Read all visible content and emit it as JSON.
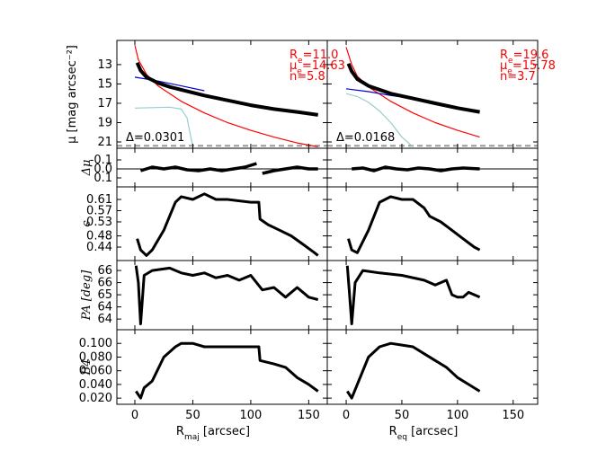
{
  "chart_data": {
    "type": "line",
    "columns": [
      {
        "xlim": [
          -15.5,
          166
        ],
        "xticks": [
          0,
          50,
          100,
          150
        ],
        "xlabel": [
          {
            "t": "R"
          },
          {
            "sub": "maj"
          },
          {
            "t": " [arcsec]"
          }
        ]
      },
      {
        "xlim": [
          -17,
          172
        ],
        "xticks": [
          0,
          50,
          100,
          150
        ],
        "xlabel": [
          {
            "t": "R"
          },
          {
            "sub": "eq"
          },
          {
            "t": " [arcsec]"
          }
        ]
      }
    ],
    "rows": [
      {
        "ylabel": "μ [mag arcsec⁻²]",
        "ylim": [
          10.5,
          21.65
        ],
        "inverted": true,
        "yticks": [
          13,
          15,
          17,
          19,
          21
        ],
        "hline": {
          "value": 21.4,
          "color": "#999999",
          "dashed": true
        },
        "panels": [
          {
            "series": [
              {
                "color": "#ff0000",
                "width": 1.2,
                "x": [
                  0,
                  3,
                  10,
                  20,
                  40,
                  60,
                  80,
                  100,
                  120,
                  140,
                  158
                ],
                "values": [
                  11,
                  12.5,
                  14,
                  15.2,
                  16.8,
                  18,
                  19,
                  19.8,
                  20.5,
                  21.1,
                  21.5
                ]
              },
              {
                "color": "#0000cc",
                "width": 1.2,
                "x": [
                  0,
                  20,
                  40,
                  60
                ],
                "values": [
                  14.3,
                  14.7,
                  15.2,
                  15.7
                ]
              },
              {
                "color": "#99cccc",
                "width": 1.2,
                "x": [
                  0,
                  30,
                  40,
                  45,
                  50
                ],
                "values": [
                  17.5,
                  17.4,
                  17.6,
                  18.5,
                  21.5
                ]
              },
              {
                "color": "#000000",
                "width": 4,
                "x": [
                  2,
                  5,
                  10,
                  20,
                  30,
                  40,
                  60,
                  80,
                  100,
                  120,
                  140,
                  158
                ],
                "values": [
                  12.8,
                  13.6,
                  14.3,
                  14.9,
                  15.3,
                  15.6,
                  16.2,
                  16.7,
                  17.2,
                  17.6,
                  17.9,
                  18.2
                ]
              }
            ],
            "annotations": [
              {
                "color": "#ff0000",
                "parts": [
                  {
                    "t": "R"
                  },
                  {
                    "sub": "e"
                  },
                  {
                    "t": "=11.0"
                  }
                ]
              },
              {
                "color": "#ff0000",
                "parts": [
                  {
                    "t": "μ"
                  },
                  {
                    "sub": "e"
                  },
                  {
                    "t": "=14.63"
                  }
                ]
              },
              {
                "color": "#ff0000",
                "parts": [
                  {
                    "t": "n=5.8"
                  }
                ]
              }
            ],
            "delta": "Δ=0.0301"
          },
          {
            "series": [
              {
                "color": "#ff0000",
                "width": 1.2,
                "x": [
                  0,
                  5,
                  10,
                  20,
                  40,
                  60,
                  80,
                  100,
                  120
                ],
                "values": [
                  11.2,
                  13,
                  14.2,
                  15.3,
                  16.8,
                  18,
                  19,
                  19.8,
                  20.5
                ]
              },
              {
                "color": "#0000cc",
                "width": 1.2,
                "x": [
                  0,
                  20,
                  40,
                  60
                ],
                "values": [
                  15.5,
                  15.8,
                  16.2,
                  16.5
                ]
              },
              {
                "color": "#99cccc",
                "width": 1.2,
                "x": [
                  0,
                  10,
                  20,
                  30,
                  40,
                  50,
                  60
                ],
                "values": [
                  16,
                  16.3,
                  16.9,
                  17.8,
                  19,
                  20.5,
                  21.5
                ]
              },
              {
                "color": "#000000",
                "width": 4,
                "x": [
                  2,
                  5,
                  10,
                  20,
                  40,
                  60,
                  80,
                  100,
                  120
                ],
                "values": [
                  12.9,
                  13.7,
                  14.5,
                  15.2,
                  16,
                  16.5,
                  17,
                  17.5,
                  17.9
                ]
              }
            ],
            "annotations": [
              {
                "color": "#ff0000",
                "parts": [
                  {
                    "t": "R"
                  },
                  {
                    "sub": "e"
                  },
                  {
                    "t": "=19.6"
                  }
                ]
              },
              {
                "color": "#ff0000",
                "parts": [
                  {
                    "t": "μ"
                  },
                  {
                    "sub": "e"
                  },
                  {
                    "t": "=15.78"
                  }
                ]
              },
              {
                "color": "#ff0000",
                "parts": [
                  {
                    "t": "n=3.7"
                  }
                ]
              }
            ],
            "delta": "Δ=0.0168"
          }
        ]
      },
      {
        "ylabel": "Δμ",
        "ylim": [
          -0.23,
          0.2
        ],
        "inverted": true,
        "yticks": [
          -0.1,
          {
            "value": 0,
            "label": "0.0"
          },
          0.1
        ],
        "hline": {
          "value": 0,
          "color": "#000000",
          "dashed": false
        },
        "panels": [
          {
            "series": [
              {
                "color": "#000000",
                "width": 3.5,
                "x": [
                  5,
                  15,
                  25,
                  35,
                  45,
                  55,
                  65,
                  75,
                  85,
                  95,
                  105,
                  108,
                  110,
                  120,
                  130,
                  140,
                  150,
                  158
                ],
                "values": [
                  0.02,
                  -0.02,
                  0,
                  -0.02,
                  0.01,
                  0.02,
                  0,
                  0.02,
                  0,
                  -0.02,
                  -0.06,
                  null,
                  0.05,
                  0.02,
                  0,
                  -0.02,
                  0,
                  0
                ]
              }
            ]
          },
          {
            "series": [
              {
                "color": "#000000",
                "width": 3.5,
                "x": [
                  5,
                  15,
                  25,
                  35,
                  45,
                  55,
                  65,
                  75,
                  85,
                  95,
                  105,
                  120
                ],
                "values": [
                  0,
                  -0.01,
                  0.02,
                  -0.02,
                  0,
                  0.01,
                  -0.01,
                  0,
                  0.02,
                  0,
                  -0.01,
                  0
                ]
              }
            ]
          }
        ]
      },
      {
        "ylabel": "ϵ",
        "ylim": [
          0.392,
          0.655
        ],
        "yticks": [
          0.44,
          0.48,
          0.53,
          0.57,
          0.61
        ],
        "panels": [
          {
            "series": [
              {
                "color": "#000000",
                "width": 3,
                "x": [
                  2,
                  5,
                  10,
                  15,
                  25,
                  35,
                  40,
                  50,
                  60,
                  70,
                  80,
                  100,
                  107,
                  108,
                  115,
                  125,
                  135,
                  145,
                  155,
                  158
                ],
                "values": [
                  0.47,
                  0.43,
                  0.41,
                  0.43,
                  0.5,
                  0.6,
                  0.62,
                  0.61,
                  0.63,
                  0.61,
                  0.61,
                  0.6,
                  0.6,
                  0.54,
                  0.52,
                  0.5,
                  0.48,
                  0.45,
                  0.42,
                  0.41
                ]
              }
            ]
          },
          {
            "series": [
              {
                "color": "#000000",
                "width": 3,
                "x": [
                  2,
                  5,
                  10,
                  20,
                  30,
                  40,
                  50,
                  60,
                  70,
                  75,
                  85,
                  95,
                  105,
                  115,
                  120
                ],
                "values": [
                  0.47,
                  0.43,
                  0.42,
                  0.5,
                  0.6,
                  0.62,
                  0.61,
                  0.61,
                  0.58,
                  0.55,
                  0.53,
                  0.5,
                  0.47,
                  0.44,
                  0.43
                ]
              }
            ]
          }
        ]
      },
      {
        "ylabel": "PA [deg]",
        "ylim": [
          63.56,
          66.41
        ],
        "yticks": [
          {
            "value": 64,
            "label": "64"
          },
          {
            "value": 64.5,
            "label": "64"
          },
          {
            "value": 65,
            "label": "65"
          },
          {
            "value": 65.5,
            "label": "66"
          },
          {
            "value": 66,
            "label": "66"
          }
        ],
        "panels": [
          {
            "series": [
              {
                "color": "#000000",
                "width": 3,
                "x": [
                  1,
                  3,
                  5,
                  8,
                  15,
                  30,
                  40,
                  50,
                  60,
                  70,
                  80,
                  90,
                  100,
                  110,
                  120,
                  130,
                  140,
                  150,
                  158
                ],
                "values": [
                  66.2,
                  65.5,
                  63.8,
                  65.8,
                  66,
                  66.1,
                  65.9,
                  65.8,
                  65.9,
                  65.7,
                  65.8,
                  65.6,
                  65.8,
                  65.2,
                  65.3,
                  64.9,
                  65.3,
                  64.9,
                  64.8
                ]
              }
            ]
          },
          {
            "series": [
              {
                "color": "#000000",
                "width": 3,
                "x": [
                  1,
                  3,
                  5,
                  8,
                  15,
                  30,
                  50,
                  70,
                  80,
                  90,
                  95,
                  100,
                  105,
                  110,
                  120
                ],
                "values": [
                  66.2,
                  65,
                  63.8,
                  65.5,
                  66,
                  65.9,
                  65.8,
                  65.6,
                  65.4,
                  65.6,
                  65,
                  64.9,
                  64.9,
                  65.1,
                  64.9
                ]
              }
            ]
          }
        ]
      },
      {
        "ylabel": "B4",
        "ylim": [
          0.011,
          0.12
        ],
        "yticks": [
          {
            "value": 0.02,
            "label": "0.020"
          },
          {
            "value": 0.04,
            "label": "0.040"
          },
          {
            "value": 0.06,
            "label": "0.060"
          },
          {
            "value": 0.08,
            "label": "0.080"
          },
          {
            "value": 0.1,
            "label": "0.100"
          }
        ],
        "panels": [
          {
            "series": [
              {
                "color": "#000000",
                "width": 3,
                "x": [
                  1,
                  5,
                  8,
                  15,
                  25,
                  35,
                  40,
                  50,
                  60,
                  80,
                  100,
                  107,
                  108,
                  120,
                  130,
                  140,
                  150,
                  158
                ],
                "values": [
                  0.03,
                  0.02,
                  0.035,
                  0.045,
                  0.08,
                  0.095,
                  0.1,
                  0.1,
                  0.095,
                  0.095,
                  0.095,
                  0.095,
                  0.075,
                  0.07,
                  0.065,
                  0.05,
                  0.04,
                  0.03
                ]
              }
            ]
          },
          {
            "series": [
              {
                "color": "#000000",
                "width": 3,
                "x": [
                  1,
                  5,
                  10,
                  20,
                  30,
                  40,
                  60,
                  70,
                  80,
                  90,
                  100,
                  110,
                  120
                ],
                "values": [
                  0.03,
                  0.02,
                  0.04,
                  0.08,
                  0.095,
                  0.1,
                  0.095,
                  0.085,
                  0.075,
                  0.065,
                  0.05,
                  0.04,
                  0.03
                ]
              }
            ]
          }
        ]
      }
    ]
  }
}
